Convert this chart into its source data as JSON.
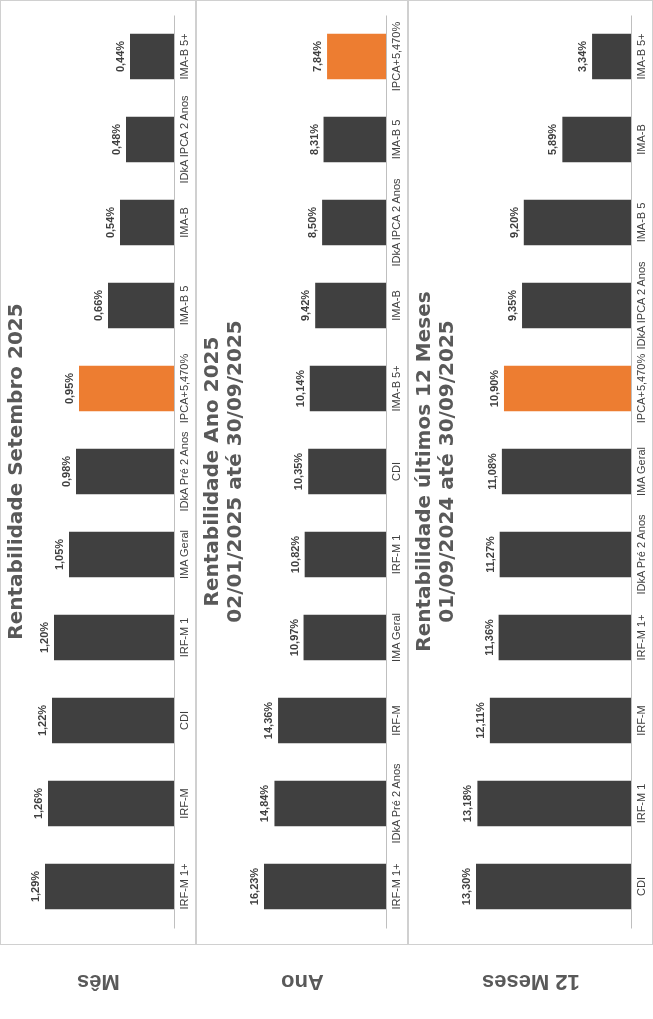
{
  "chart_data": [
    {
      "type": "bar",
      "orientation": "horizontal",
      "title": "Rentabilidade Setembro 2025",
      "annotations": [
        "Mês"
      ],
      "categories": [
        "IMA-B 5+",
        "IDkA IPCA 2 Anos",
        "IMA-B",
        "IMA-B 5",
        "IPCA+5,470%",
        "IDkA Pré 2 Anos",
        "IMA Geral",
        "IRF-M 1",
        "CDI",
        "IRF-M",
        "IRF-M 1+"
      ],
      "values": [
        0.44,
        0.48,
        0.54,
        0.66,
        0.95,
        0.98,
        1.05,
        1.2,
        1.22,
        1.26,
        1.29
      ],
      "value_labels": [
        "0,44%",
        "0,48%",
        "0,54%",
        "0,66%",
        "0,95%",
        "0,98%",
        "1,05%",
        "1,20%",
        "1,22%",
        "1,26%",
        "1,29%"
      ],
      "colors": [
        "#404040",
        "#404040",
        "#404040",
        "#404040",
        "#ed7d31",
        "#404040",
        "#404040",
        "#404040",
        "#404040",
        "#404040",
        "#404040"
      ]
    },
    {
      "type": "bar",
      "orientation": "horizontal",
      "title": "Rentabilidade Ano 2025",
      "subtitle": "02/01/2025 até 30/09/2025",
      "annotations": [
        "Ano"
      ],
      "categories": [
        "IPCA+5,470%",
        "IMA-B 5",
        "IDkA IPCA 2 Anos",
        "IMA-B",
        "IMA-B 5+",
        "CDI",
        "IRF-M 1",
        "IMA Geral",
        "IRF-M",
        "IDkA Pré 2 Anos",
        "IRF-M 1+"
      ],
      "values": [
        7.84,
        8.31,
        8.5,
        9.42,
        10.14,
        10.35,
        10.82,
        10.97,
        14.36,
        14.84,
        16.23
      ],
      "value_labels": [
        "7,84%",
        "8,31%",
        "8,50%",
        "9,42%",
        "10,14%",
        "10,35%",
        "10,82%",
        "10,97%",
        "14,36%",
        "14,84%",
        "16,23%"
      ],
      "colors": [
        "#ed7d31",
        "#404040",
        "#404040",
        "#404040",
        "#404040",
        "#404040",
        "#404040",
        "#404040",
        "#404040",
        "#404040",
        "#404040"
      ]
    },
    {
      "type": "bar",
      "orientation": "horizontal",
      "title": "Rentabilidade últimos 12 Meses",
      "subtitle": "01/09/2024 até 30/09/2025",
      "annotations": [
        "12 Meses"
      ],
      "categories": [
        "IMA-B 5+",
        "IMA-B",
        "IMA-B 5",
        "IDkA IPCA 2 Anos",
        "IPCA+5,470%",
        "IMA Geral",
        "IDkA Pré 2 Anos",
        "IRF-M 1+",
        "IRF-M",
        "IRF-M 1",
        "CDI"
      ],
      "values": [
        3.34,
        5.89,
        9.2,
        9.35,
        10.9,
        11.08,
        11.27,
        11.36,
        12.11,
        13.18,
        13.3
      ],
      "value_labels": [
        "3,34%",
        "5,89%",
        "9,20%",
        "9,35%",
        "10,90%",
        "11,08%",
        "11,27%",
        "11,36%",
        "12,11%",
        "13,18%",
        "13,30%"
      ],
      "colors": [
        "#404040",
        "#404040",
        "#404040",
        "#404040",
        "#ed7d31",
        "#404040",
        "#404040",
        "#404040",
        "#404040",
        "#404040",
        "#404040"
      ]
    }
  ]
}
